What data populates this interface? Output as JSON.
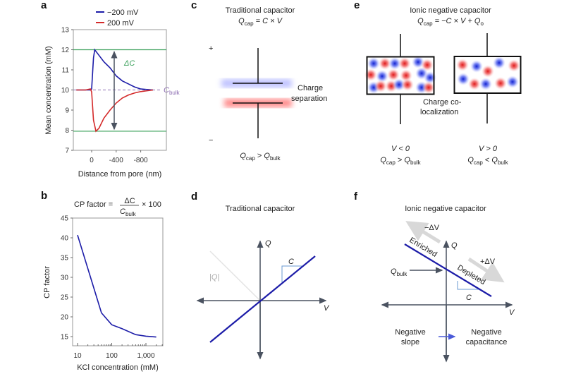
{
  "panels": {
    "a": {
      "letter": "a"
    },
    "b": {
      "letter": "b",
      "formula_prefix": "CP factor =",
      "formula_num": "ΔC",
      "formula_den": "C",
      "formula_den_sub": "bulk",
      "formula_suffix": "× 100"
    },
    "c": {
      "letter": "c",
      "title": "Traditional capacitor",
      "formula": {
        "q": "Q",
        "q_sub": "cap",
        "rest": " = C × V"
      },
      "plus": "+",
      "minus": "−",
      "annotation_line1": "Charge",
      "annotation_line2": "separation",
      "relation": {
        "q1": "Q",
        "q1_sub": "cap",
        "op": " > ",
        "q2": "Q",
        "q2_sub": "bulk"
      }
    },
    "d": {
      "letter": "d",
      "title": "Traditional capacitor",
      "q_axis": "Q",
      "v_axis": "V",
      "abs_q": "|Q|",
      "slope": "C"
    },
    "e": {
      "letter": "e",
      "title": "Ionic negative capacitor",
      "formula": {
        "q": "Q",
        "q_sub": "cap",
        "rest": " = −C × V + Q",
        "tail_sub": "o"
      },
      "annotation_line1": "Charge co-",
      "annotation_line2": "localization",
      "left": {
        "condition": "V < 0",
        "q1": "Q",
        "q1_sub": "cap",
        "op": " > ",
        "q2": "Q",
        "q2_sub": "bulk"
      },
      "right": {
        "condition": "V > 0",
        "q1": "Q",
        "q1_sub": "cap",
        "op": " < ",
        "q2": "Q",
        "q2_sub": "bulk"
      }
    },
    "f": {
      "letter": "f",
      "title": "Ionic negative capacitor",
      "q_axis": "Q",
      "v_axis": "V",
      "slope": "C",
      "minus_dv": "−ΔV",
      "plus_dv": "+ΔV",
      "enriched": "Enriched",
      "depleted": "Depleted",
      "qbulk": "Q",
      "qbulk_sub": "bulk",
      "left_line1": "Negative",
      "left_line2": "slope",
      "right_line1": "Negative",
      "right_line2": "capacitance"
    }
  },
  "colors": {
    "blue": "#1c1ca8",
    "red": "#d42a2a",
    "green": "#3aa05a",
    "purple": "#8a6ab0",
    "axis": "#4a5260",
    "gray_arrow": "#d8d8d8"
  },
  "chart_data": [
    {
      "type": "line",
      "xlabel": "Distance from pore (nm)",
      "ylabel": "Mean concentration (mM)",
      "ylim": [
        7,
        13
      ],
      "yticks": [
        "7",
        "8",
        "9",
        "10",
        "11",
        "12",
        "13"
      ],
      "xticks": [
        "0",
        "-400",
        "-800"
      ],
      "xtick_values": [
        0,
        -400,
        -800
      ],
      "x_reversed": true,
      "legend": "top",
      "series": [
        {
          "name": "−200 mV",
          "color": "#1c1ca8",
          "x": [
            250,
            100,
            20,
            0,
            -30,
            -50,
            -100,
            -200,
            -300,
            -400,
            -500,
            -600,
            -700,
            -800,
            -1000
          ],
          "y": [
            10,
            10,
            10,
            10.05,
            11.6,
            12,
            11.8,
            11.4,
            11.1,
            10.7,
            10.45,
            10.3,
            10.15,
            10.05,
            10
          ]
        },
        {
          "name": "200 mV",
          "color": "#d42a2a",
          "x": [
            250,
            100,
            20,
            0,
            -30,
            -70,
            -120,
            -200,
            -300,
            -400,
            -500,
            -600,
            -700,
            -800,
            -1000
          ],
          "y": [
            10,
            10,
            10.05,
            9.9,
            8.5,
            7.95,
            8.1,
            8.6,
            9.0,
            9.35,
            9.6,
            9.75,
            9.85,
            9.92,
            10
          ]
        }
      ],
      "reference_lines": {
        "upper": 12,
        "lower": 7.95,
        "bulk": 10
      },
      "annotations": {
        "delta": "ΔC",
        "bulk": "C",
        "bulk_sub": "bulk"
      }
    },
    {
      "type": "line",
      "xlabel": "KCl concentration (mM)",
      "ylabel": "CP factor",
      "x_scale": "log",
      "xticks": [
        "10",
        "100",
        "1,000"
      ],
      "xtick_values": [
        10,
        100,
        1000
      ],
      "yticks": [
        "15",
        "20",
        "25",
        "30",
        "35",
        "40",
        "45"
      ],
      "ylim": [
        12.5,
        45
      ],
      "series": [
        {
          "color": "#1c1ca8",
          "x": [
            10,
            50,
            100,
            200,
            500,
            1000,
            2000
          ],
          "y": [
            40.7,
            21,
            18,
            17,
            15.5,
            15.1,
            14.9
          ]
        }
      ]
    }
  ]
}
